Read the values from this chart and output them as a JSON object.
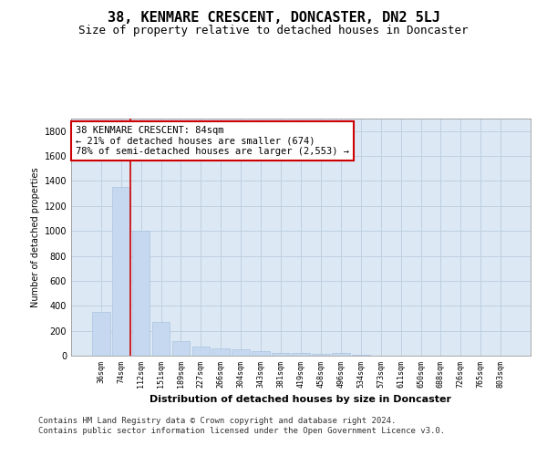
{
  "title": "38, KENMARE CRESCENT, DONCASTER, DN2 5LJ",
  "subtitle": "Size of property relative to detached houses in Doncaster",
  "xlabel": "Distribution of detached houses by size in Doncaster",
  "ylabel": "Number of detached properties",
  "bar_labels": [
    "36sqm",
    "74sqm",
    "112sqm",
    "151sqm",
    "189sqm",
    "227sqm",
    "266sqm",
    "304sqm",
    "343sqm",
    "381sqm",
    "419sqm",
    "458sqm",
    "496sqm",
    "534sqm",
    "573sqm",
    "611sqm",
    "650sqm",
    "688sqm",
    "726sqm",
    "765sqm",
    "803sqm"
  ],
  "bar_values": [
    350,
    1350,
    1000,
    270,
    120,
    70,
    60,
    50,
    35,
    20,
    20,
    15,
    20,
    5,
    0,
    0,
    0,
    0,
    0,
    0,
    0
  ],
  "bar_color": "#c5d8f0",
  "bar_edge_color": "#a8c4e0",
  "grid_color": "#c0d0e0",
  "bg_color": "#dce8f4",
  "ylim": [
    0,
    1900
  ],
  "yticks": [
    0,
    200,
    400,
    600,
    800,
    1000,
    1200,
    1400,
    1600,
    1800
  ],
  "red_line_color": "#cc0000",
  "annotation_text": "38 KENMARE CRESCENT: 84sqm\n← 21% of detached houses are smaller (674)\n78% of semi-detached houses are larger (2,553) →",
  "annotation_box_color": "#ffffff",
  "annotation_box_edge": "#cc0000",
  "footer_text": "Contains HM Land Registry data © Crown copyright and database right 2024.\nContains public sector information licensed under the Open Government Licence v3.0.",
  "title_fontsize": 11,
  "subtitle_fontsize": 9,
  "annotation_fontsize": 7.5,
  "footer_fontsize": 6.5,
  "ylabel_fontsize": 7,
  "xlabel_fontsize": 8
}
